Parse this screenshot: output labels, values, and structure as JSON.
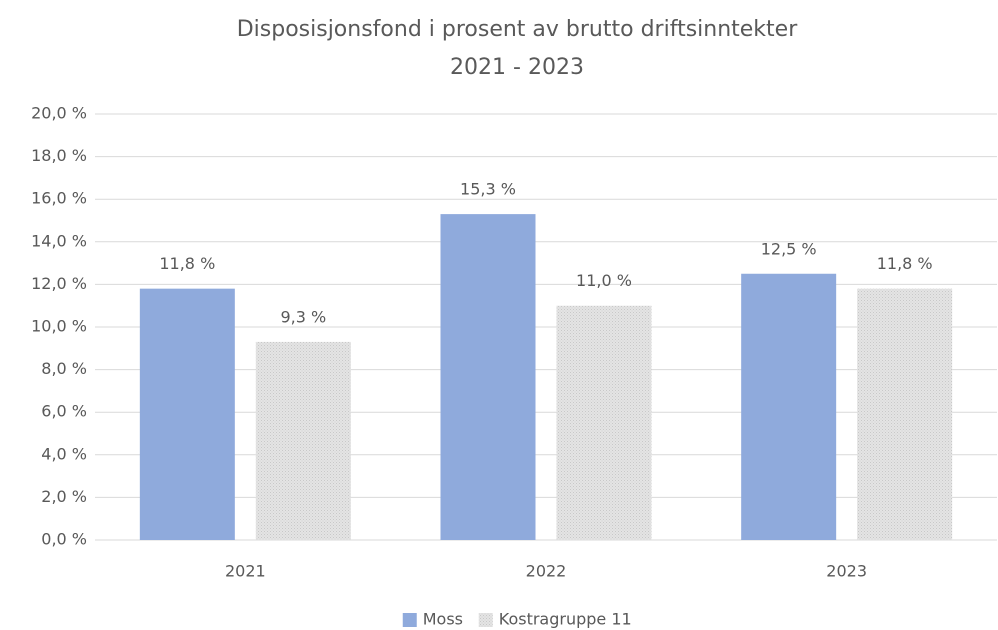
{
  "chart_data": {
    "type": "bar",
    "title": "Disposisjonsfond i prosent av brutto driftsinntekter",
    "subtitle": "2021 - 2023",
    "categories": [
      "2021",
      "2022",
      "2023"
    ],
    "series": [
      {
        "name": "Moss",
        "color": "#8faadc",
        "values": [
          11.8,
          15.3,
          12.5
        ],
        "value_labels": [
          "11,8 %",
          "15,3 %",
          "12,5 %"
        ]
      },
      {
        "name": "Kostragruppe 11",
        "color": "#d9d9d9",
        "values": [
          9.3,
          11.0,
          11.8
        ],
        "value_labels": [
          "9,3 %",
          "11,0 %",
          "11,8 %"
        ]
      }
    ],
    "ylim": [
      0,
      20
    ],
    "yticks": [
      {
        "value": 0,
        "label": "0,0 %"
      },
      {
        "value": 2,
        "label": "2,0 %"
      },
      {
        "value": 4,
        "label": "4,0 %"
      },
      {
        "value": 6,
        "label": "6,0 %"
      },
      {
        "value": 8,
        "label": "8,0 %"
      },
      {
        "value": 10,
        "label": "10,0 %"
      },
      {
        "value": 12,
        "label": "12,0 %"
      },
      {
        "value": 14,
        "label": "14,0 %"
      },
      {
        "value": 16,
        "label": "16,0 %"
      },
      {
        "value": 18,
        "label": "18,0 %"
      },
      {
        "value": 20,
        "label": "20,0 %"
      }
    ],
    "grid": true,
    "legend": "bottom"
  }
}
